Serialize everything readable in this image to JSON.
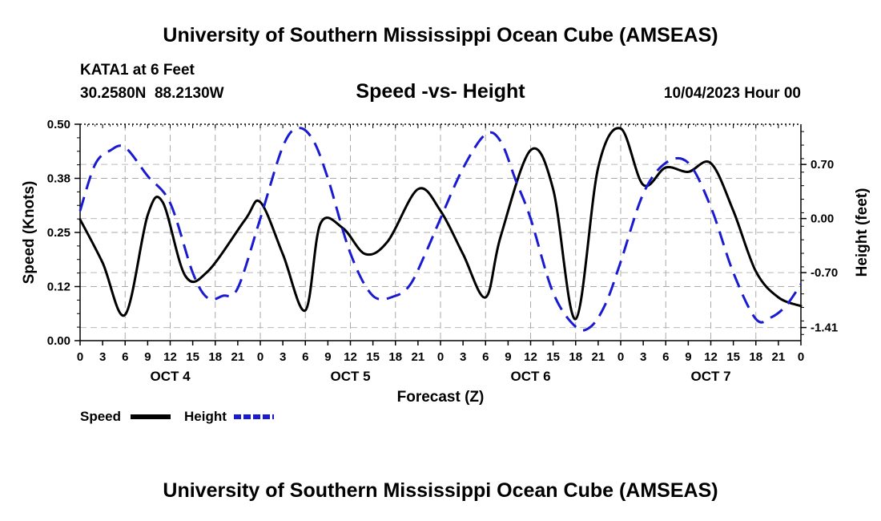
{
  "header": {
    "title_top": "University of Southern Mississippi Ocean Cube (AMSEAS)",
    "title_bottom": "University of Southern Mississippi Ocean Cube (AMSEAS)",
    "station": "KATA1 at 6 Feet",
    "coords": "30.2580N  88.2130W",
    "subtitle": "Speed -vs- Height",
    "timestamp": "10/04/2023 Hour 00"
  },
  "chart_data": {
    "type": "line",
    "title": "Speed -vs- Height",
    "xlabel": "Forecast (Z)",
    "ylabel": "Speed (Knots)",
    "y2label": "Height (feet)",
    "x_tick_labels": [
      "0",
      "3",
      "6",
      "9",
      "12",
      "15",
      "18",
      "21",
      "0",
      "3",
      "6",
      "9",
      "12",
      "15",
      "18",
      "21",
      "0",
      "3",
      "6",
      "9",
      "12",
      "15",
      "18",
      "21",
      "0",
      "3",
      "6",
      "9",
      "12",
      "15",
      "18",
      "21",
      "0"
    ],
    "day_labels": [
      "OCT 4",
      "OCT 5",
      "OCT 6",
      "OCT 7"
    ],
    "xlim": [
      0,
      96
    ],
    "ylim": [
      0,
      0.5
    ],
    "y_ticks": [
      "0.00",
      "0.12",
      "0.25",
      "0.38",
      "0.50"
    ],
    "y_tick_values": [
      0,
      0.125,
      0.25,
      0.375,
      0.5
    ],
    "y2lim": [
      -1.58,
      1.22
    ],
    "y2_ticks": [
      "-1.41",
      "-0.70",
      "0.00",
      "0.70"
    ],
    "y2_tick_values": [
      -1.41,
      -0.7,
      0.0,
      0.7
    ],
    "grid": true,
    "series": [
      {
        "name": "Speed",
        "axis": "left",
        "color": "#000000",
        "style": "solid",
        "x": [
          0,
          3,
          6,
          9,
          11,
          14,
          17,
          22,
          24,
          27,
          30,
          32,
          35,
          38,
          41,
          45,
          48,
          51,
          54,
          56,
          60,
          63,
          66,
          69,
          72,
          75,
          78,
          81,
          84,
          87,
          90,
          93,
          96
        ],
        "values": [
          0.28,
          0.18,
          0.06,
          0.29,
          0.32,
          0.15,
          0.16,
          0.28,
          0.32,
          0.2,
          0.07,
          0.27,
          0.26,
          0.2,
          0.23,
          0.35,
          0.3,
          0.2,
          0.1,
          0.24,
          0.44,
          0.35,
          0.05,
          0.4,
          0.49,
          0.36,
          0.4,
          0.39,
          0.41,
          0.3,
          0.16,
          0.1,
          0.08
        ]
      },
      {
        "name": "Height",
        "axis": "right",
        "color": "#1a1ad0",
        "style": "dashed",
        "x": [
          0,
          2,
          4,
          6,
          9,
          12,
          15,
          17,
          19,
          21,
          24,
          27,
          29,
          31,
          33,
          36,
          39,
          42,
          44,
          46,
          48,
          51,
          54,
          56,
          58,
          60,
          63,
          66,
          68,
          70,
          72,
          75,
          78,
          81,
          84,
          87,
          90,
          92,
          94,
          96
        ],
        "values": [
          0.1,
          0.7,
          0.88,
          0.92,
          0.55,
          0.2,
          -0.7,
          -1.03,
          -1.0,
          -0.9,
          0.0,
          0.93,
          1.17,
          1.02,
          0.52,
          -0.45,
          -1.0,
          -1.0,
          -0.85,
          -0.45,
          0.0,
          0.65,
          1.09,
          1.0,
          0.5,
          0.0,
          -0.96,
          -1.4,
          -1.4,
          -1.1,
          -0.56,
          0.32,
          0.72,
          0.72,
          0.15,
          -0.7,
          -1.3,
          -1.28,
          -1.13,
          -0.85
        ]
      }
    ],
    "legend": [
      "Speed",
      "Height"
    ],
    "legend_position": "bottom-left"
  }
}
